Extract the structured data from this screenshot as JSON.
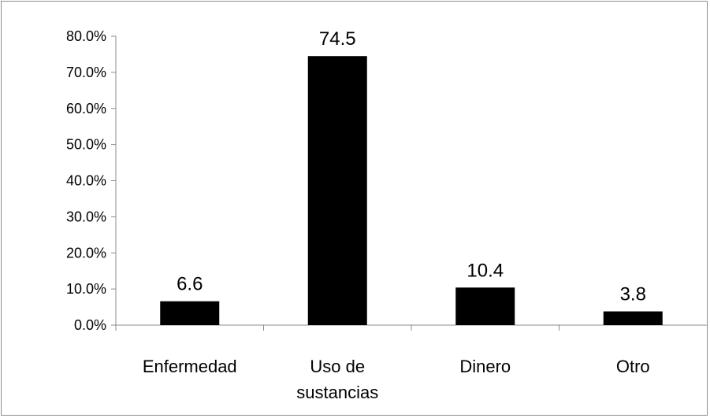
{
  "chart_data": {
    "type": "bar",
    "categories": [
      "Enfermedad",
      "Uso de sustancias",
      "Dinero",
      "Otro"
    ],
    "category_lines": [
      [
        "Enfermedad"
      ],
      [
        "Uso de",
        "sustancias"
      ],
      [
        "Dinero"
      ],
      [
        "Otro"
      ]
    ],
    "values": [
      6.6,
      74.5,
      10.4,
      3.8
    ],
    "data_labels": [
      "6.6",
      "74.5",
      "10.4",
      "3.8"
    ],
    "ylim": [
      0,
      80
    ],
    "yticks": [
      0,
      10,
      20,
      30,
      40,
      50,
      60,
      70,
      80
    ],
    "ytick_labels": [
      "0.0%",
      "10.0%",
      "20.0%",
      "30.0%",
      "40.0%",
      "50.0%",
      "60.0%",
      "70.0%",
      "80.0%"
    ],
    "title": "",
    "xlabel": "",
    "ylabel": "",
    "grid": false,
    "legend": "none",
    "bar_color": "#000000"
  }
}
